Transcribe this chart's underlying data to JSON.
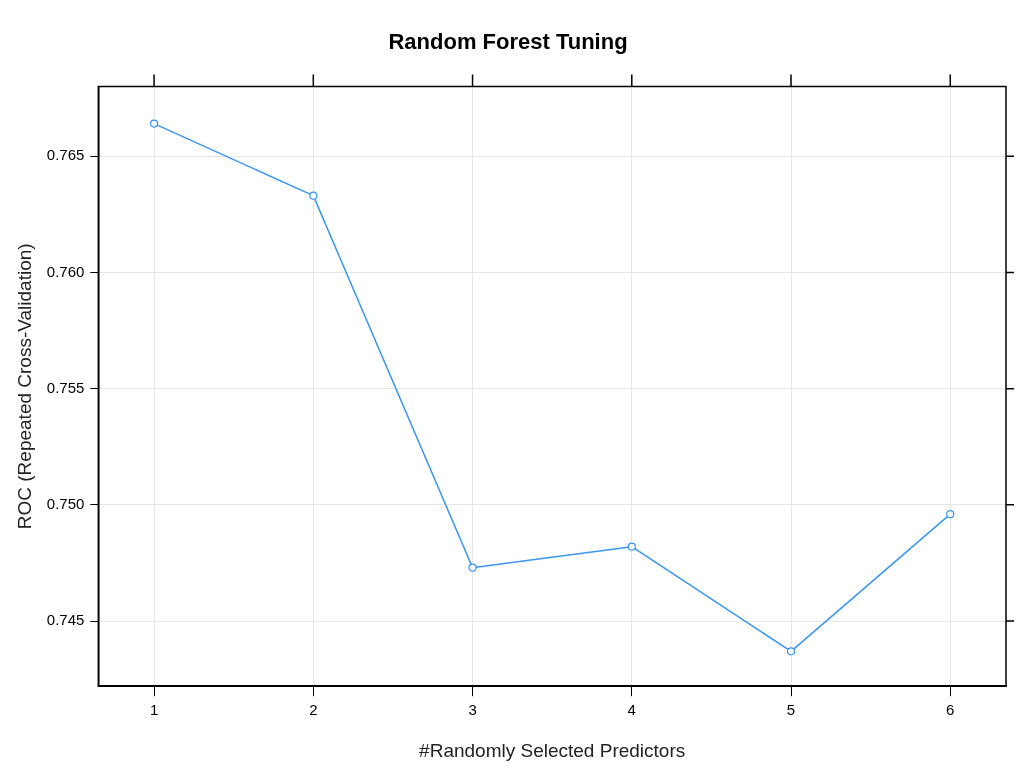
{
  "chart_data": {
    "type": "line",
    "title": "Random Forest Tuning",
    "xlabel": "#Randomly Selected Predictors",
    "ylabel": "ROC (Repeated Cross-Validation)",
    "x": [
      1,
      2,
      3,
      4,
      5,
      6
    ],
    "series": [
      {
        "color": "#3a96f2",
        "values": [
          0.7664,
          0.7633,
          0.7473,
          0.7482,
          0.7437,
          0.7496
        ]
      }
    ],
    "xlim": [
      0.65,
      6.35
    ],
    "xticks": [
      1,
      2,
      3,
      4,
      5,
      6
    ],
    "ylim": [
      0.7422,
      0.768
    ],
    "yticks": [
      0.745,
      {
        "value": 0.75,
        "label": "0.750"
      },
      0.755,
      {
        "value": 0.76,
        "label": "0.760"
      },
      0.765
    ],
    "grid": true,
    "marker": "circle",
    "line_style": "solid"
  }
}
